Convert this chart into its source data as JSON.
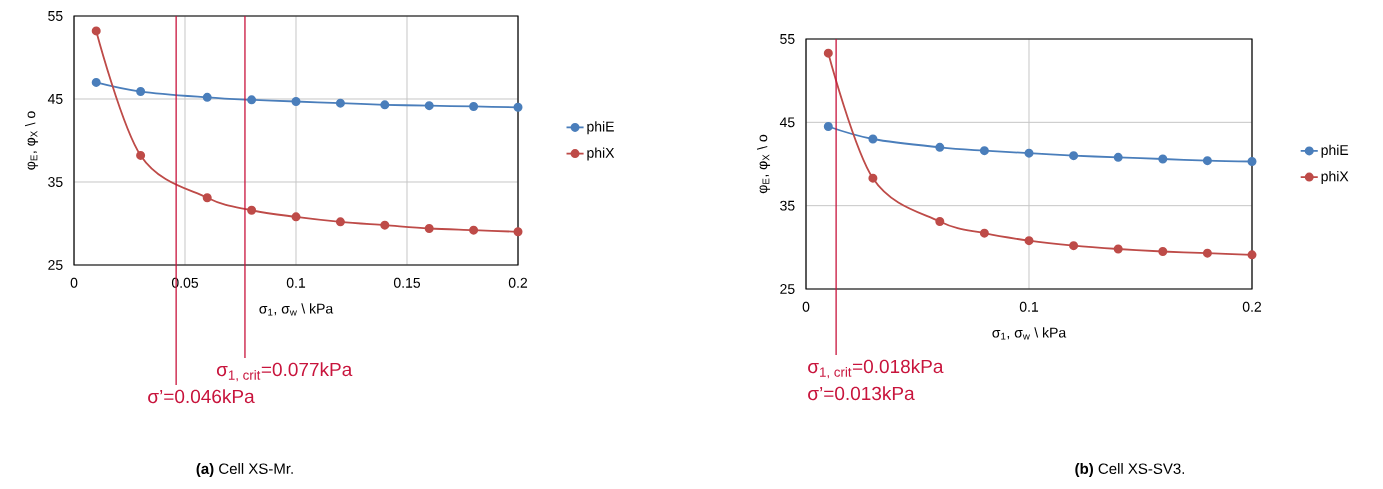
{
  "chart_data": [
    {
      "type": "line",
      "title": "**(a)** Cell XS-Mr.",
      "xlabel": "σ$_{1}$, σ$_{w}$ \\ kPa",
      "ylabel": "φ$_{E}$, φ$_{X}$ \\ o",
      "x": [
        0.01,
        0.03,
        0.06,
        0.08,
        0.1,
        0.12,
        0.14,
        0.16,
        0.18,
        0.2
      ],
      "series": [
        {
          "name": "phiE",
          "color": "#4a7ebb",
          "values": [
            47.0,
            45.9,
            45.2,
            44.9,
            44.7,
            44.5,
            44.3,
            44.2,
            44.1,
            44.0
          ]
        },
        {
          "name": "phiX",
          "color": "#be4b48",
          "values": [
            53.2,
            38.2,
            33.1,
            31.6,
            30.8,
            30.2,
            29.8,
            29.4,
            29.2,
            29.0
          ]
        }
      ],
      "xlim": [
        0,
        0.2
      ],
      "xticks": [
        0,
        0.05,
        0.1,
        0.15,
        0.2
      ],
      "ylim": [
        25,
        55
      ],
      "yticks": [
        25,
        35,
        45,
        55
      ],
      "ref_lines": [
        {
          "axis": "x",
          "value": 0.077,
          "label": "σ$_{1, crit}$=0.077kPa",
          "color": "#c8143c"
        },
        {
          "axis": "x",
          "value": 0.046,
          "label": "σ’=0.046kPa",
          "color": "#c8143c"
        }
      ],
      "grid": true,
      "legend": "right",
      "marker": "circle",
      "line_style": "solid"
    },
    {
      "type": "line",
      "title": "**(b)** Cell XS-SV3.",
      "xlabel": "σ$_{1}$, σ$_{w}$ \\ kPa",
      "ylabel": "φ$_{E}$, φ$_{X}$ \\ o",
      "x": [
        0.01,
        0.03,
        0.06,
        0.08,
        0.1,
        0.12,
        0.14,
        0.16,
        0.18,
        0.2
      ],
      "series": [
        {
          "name": "phiE",
          "color": "#4a7ebb",
          "values": [
            44.5,
            43.0,
            42.0,
            41.6,
            41.3,
            41.0,
            40.8,
            40.6,
            40.4,
            40.3
          ]
        },
        {
          "name": "phiX",
          "color": "#be4b48",
          "values": [
            53.3,
            38.3,
            33.1,
            31.7,
            30.8,
            30.2,
            29.8,
            29.5,
            29.3,
            29.1
          ]
        }
      ],
      "xlim": [
        0,
        0.2
      ],
      "xticks": [
        0,
        0.1,
        0.2
      ],
      "ylim": [
        25,
        55
      ],
      "yticks": [
        25,
        35,
        45,
        55
      ],
      "ref_lines": [
        {
          "axis": "x",
          "value": 0.0135,
          "label": "σ$_{1, crit}$=0.018kPa",
          "color": "#c8143c"
        }
      ],
      "annotations": [
        "σ’=0.013kPa"
      ],
      "grid": true,
      "legend": "right",
      "marker": "circle",
      "line_style": "solid"
    }
  ]
}
